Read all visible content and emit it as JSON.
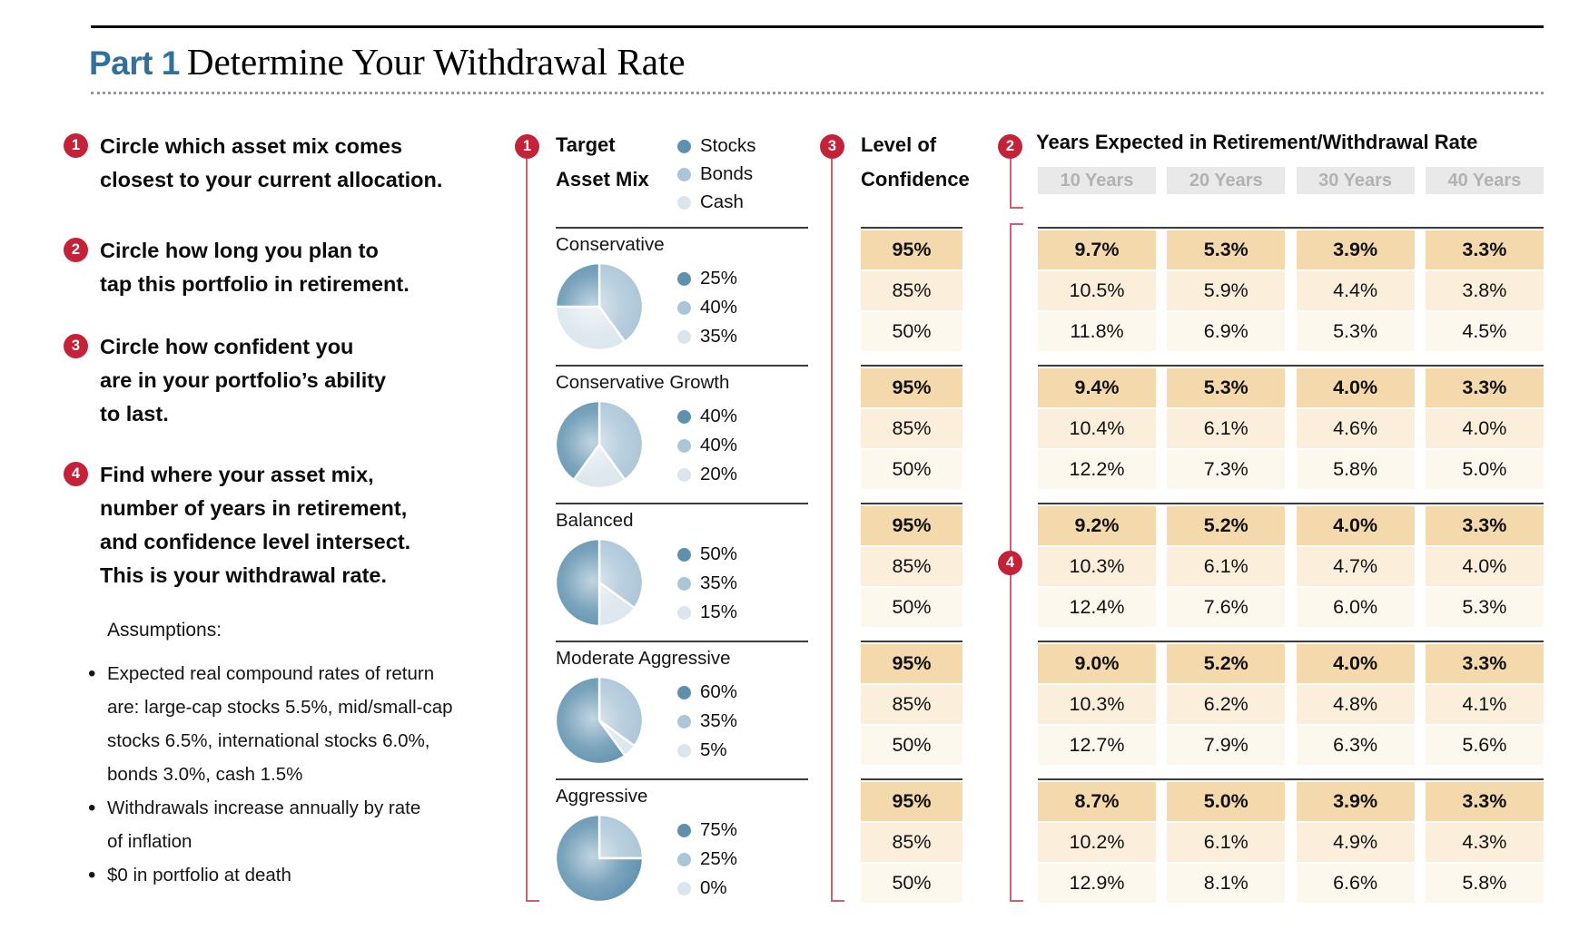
{
  "title": {
    "part": "Part 1",
    "main": "Determine Your Withdrawal Rate"
  },
  "steps": [
    {
      "num": "1",
      "text": "Circle which asset mix comes\nclosest to your current allocation."
    },
    {
      "num": "2",
      "text": "Circle how long you plan to\ntap this portfolio in retirement."
    },
    {
      "num": "3",
      "text": "Circle how confident you\nare in your portfolio’s ability\nto last."
    },
    {
      "num": "4",
      "text": "Find where your asset mix,\nnumber of years in retirement,\nand confidence level intersect.\nThis is your withdrawal rate."
    }
  ],
  "assumptions": {
    "heading": "Assumptions:",
    "bullets": [
      "Expected real compound rates of return\nare: large-cap stocks 5.5%, mid/small-cap\nstocks 6.5%, international stocks 6.0%,\nbonds 3.0%, cash 1.5%",
      "Withdrawals increase annually by rate\nof inflation",
      "$0 in portfolio at death"
    ]
  },
  "asset_mix": {
    "badge": "1",
    "header_line1": "Target",
    "header_line2": "Asset Mix",
    "colors": {
      "stocks": "#5f91af",
      "bonds": "#abc6d8",
      "cash": "#dae5ed"
    },
    "legend": [
      "Stocks",
      "Bonds",
      "Cash"
    ],
    "portfolios": [
      {
        "name": "Conservative",
        "stocks": 25,
        "bonds": 40,
        "cash": 35
      },
      {
        "name": "Conservative Growth",
        "stocks": 40,
        "bonds": 40,
        "cash": 20
      },
      {
        "name": "Balanced",
        "stocks": 50,
        "bonds": 35,
        "cash": 15
      },
      {
        "name": "Moderate Aggressive",
        "stocks": 60,
        "bonds": 35,
        "cash": 5
      },
      {
        "name": "Aggressive",
        "stocks": 75,
        "bonds": 25,
        "cash": 0
      }
    ]
  },
  "confidence": {
    "badge": "3",
    "header_line1": "Level of",
    "header_line2": "Confidence",
    "levels": [
      "95%",
      "85%",
      "50%"
    ]
  },
  "rate_table": {
    "badge_years": "2",
    "badge_find": "4",
    "header": "Years Expected in Retirement/Withdrawal Rate",
    "columns": [
      "10 Years",
      "20 Years",
      "30 Years",
      "40 Years"
    ],
    "groups": [
      {
        "portfolio": "Conservative",
        "rows": [
          [
            "9.7%",
            "5.3%",
            "3.9%",
            "3.3%"
          ],
          [
            "10.5%",
            "5.9%",
            "4.4%",
            "3.8%"
          ],
          [
            "11.8%",
            "6.9%",
            "5.3%",
            "4.5%"
          ]
        ]
      },
      {
        "portfolio": "Conservative Growth",
        "rows": [
          [
            "9.4%",
            "5.3%",
            "4.0%",
            "3.3%"
          ],
          [
            "10.4%",
            "6.1%",
            "4.6%",
            "4.0%"
          ],
          [
            "12.2%",
            "7.3%",
            "5.8%",
            "5.0%"
          ]
        ]
      },
      {
        "portfolio": "Balanced",
        "rows": [
          [
            "9.2%",
            "5.2%",
            "4.0%",
            "3.3%"
          ],
          [
            "10.3%",
            "6.1%",
            "4.7%",
            "4.0%"
          ],
          [
            "12.4%",
            "7.6%",
            "6.0%",
            "5.3%"
          ]
        ]
      },
      {
        "portfolio": "Moderate Aggressive",
        "rows": [
          [
            "9.0%",
            "5.2%",
            "4.0%",
            "3.3%"
          ],
          [
            "10.3%",
            "6.2%",
            "4.8%",
            "4.1%"
          ],
          [
            "12.7%",
            "7.9%",
            "6.3%",
            "5.6%"
          ]
        ]
      },
      {
        "portfolio": "Aggressive",
        "rows": [
          [
            "8.7%",
            "5.0%",
            "3.9%",
            "3.3%"
          ],
          [
            "10.2%",
            "6.1%",
            "4.9%",
            "4.3%"
          ],
          [
            "12.9%",
            "8.1%",
            "6.6%",
            "5.8%"
          ]
        ]
      }
    ]
  },
  "palette": {
    "accent_red": "#c42239",
    "line_red": "#d0606e",
    "part_blue": "#33709e",
    "row_95": "#f4d9ad",
    "row_85": "#fbeedb",
    "row_50": "#fdf8ed",
    "year_box_bg": "#e9e9e9",
    "year_box_text": "#b2b2b2"
  }
}
